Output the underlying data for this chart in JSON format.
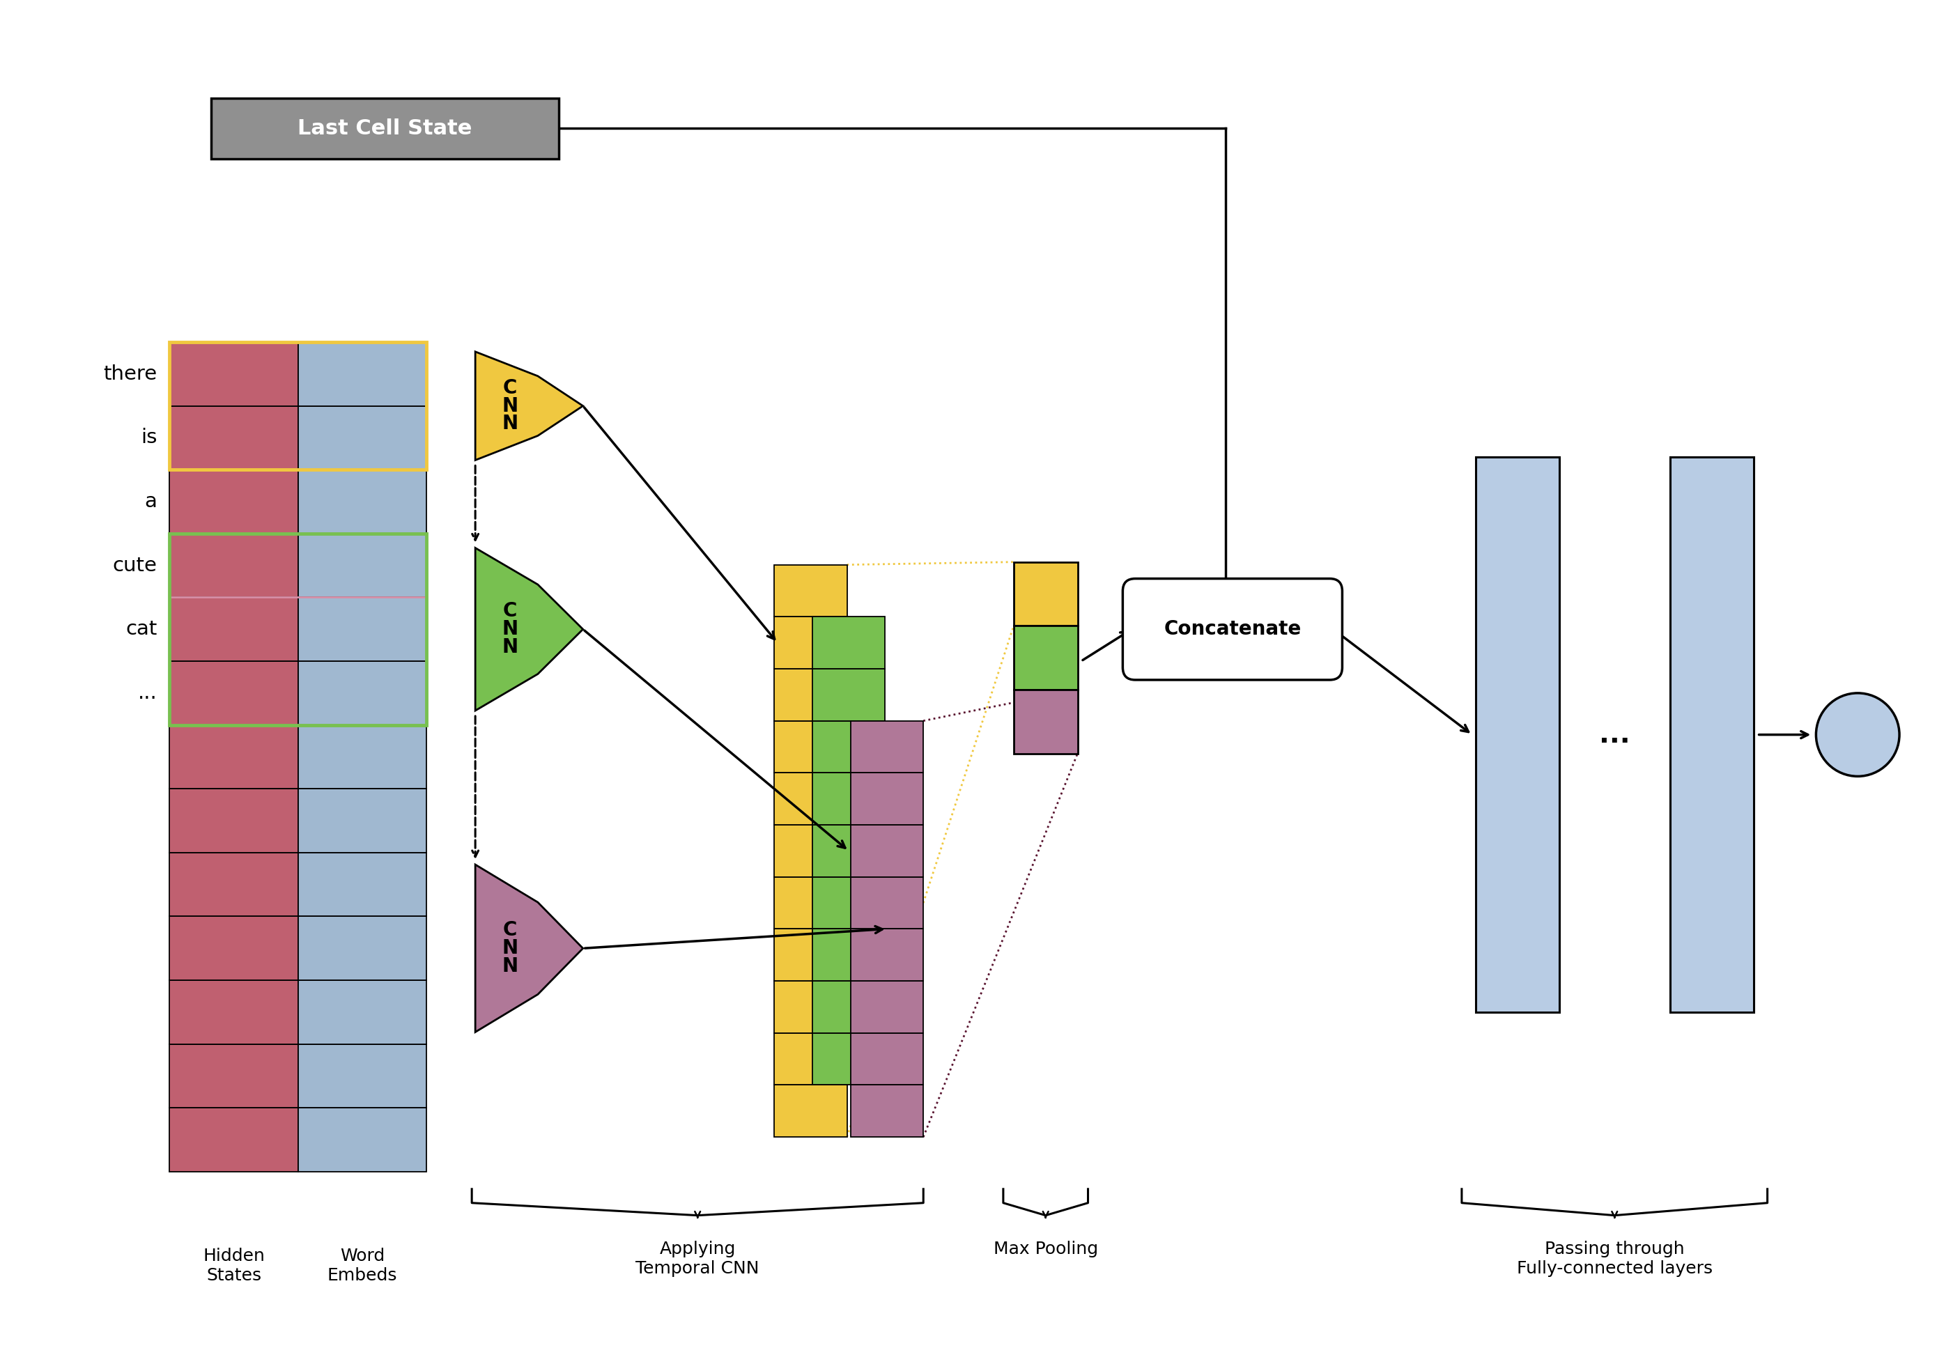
{
  "bg_color": "#ffffff",
  "hidden_states_color": "#c06070",
  "word_embeds_color": "#a0b8d0",
  "cnn_yellow_color": "#f0c840",
  "cnn_green_color": "#78c050",
  "cnn_purple_color": "#b07898",
  "fc_color": "#b8cce4",
  "output_color": "#b8cce4",
  "last_cell_state_box_color": "#909090",
  "maxpool_yellow_color": "#f0c840",
  "maxpool_green_color": "#78c050",
  "maxpool_purple_color": "#b07898",
  "words": [
    "there",
    "is",
    "a",
    "cute",
    "cat",
    "..."
  ]
}
